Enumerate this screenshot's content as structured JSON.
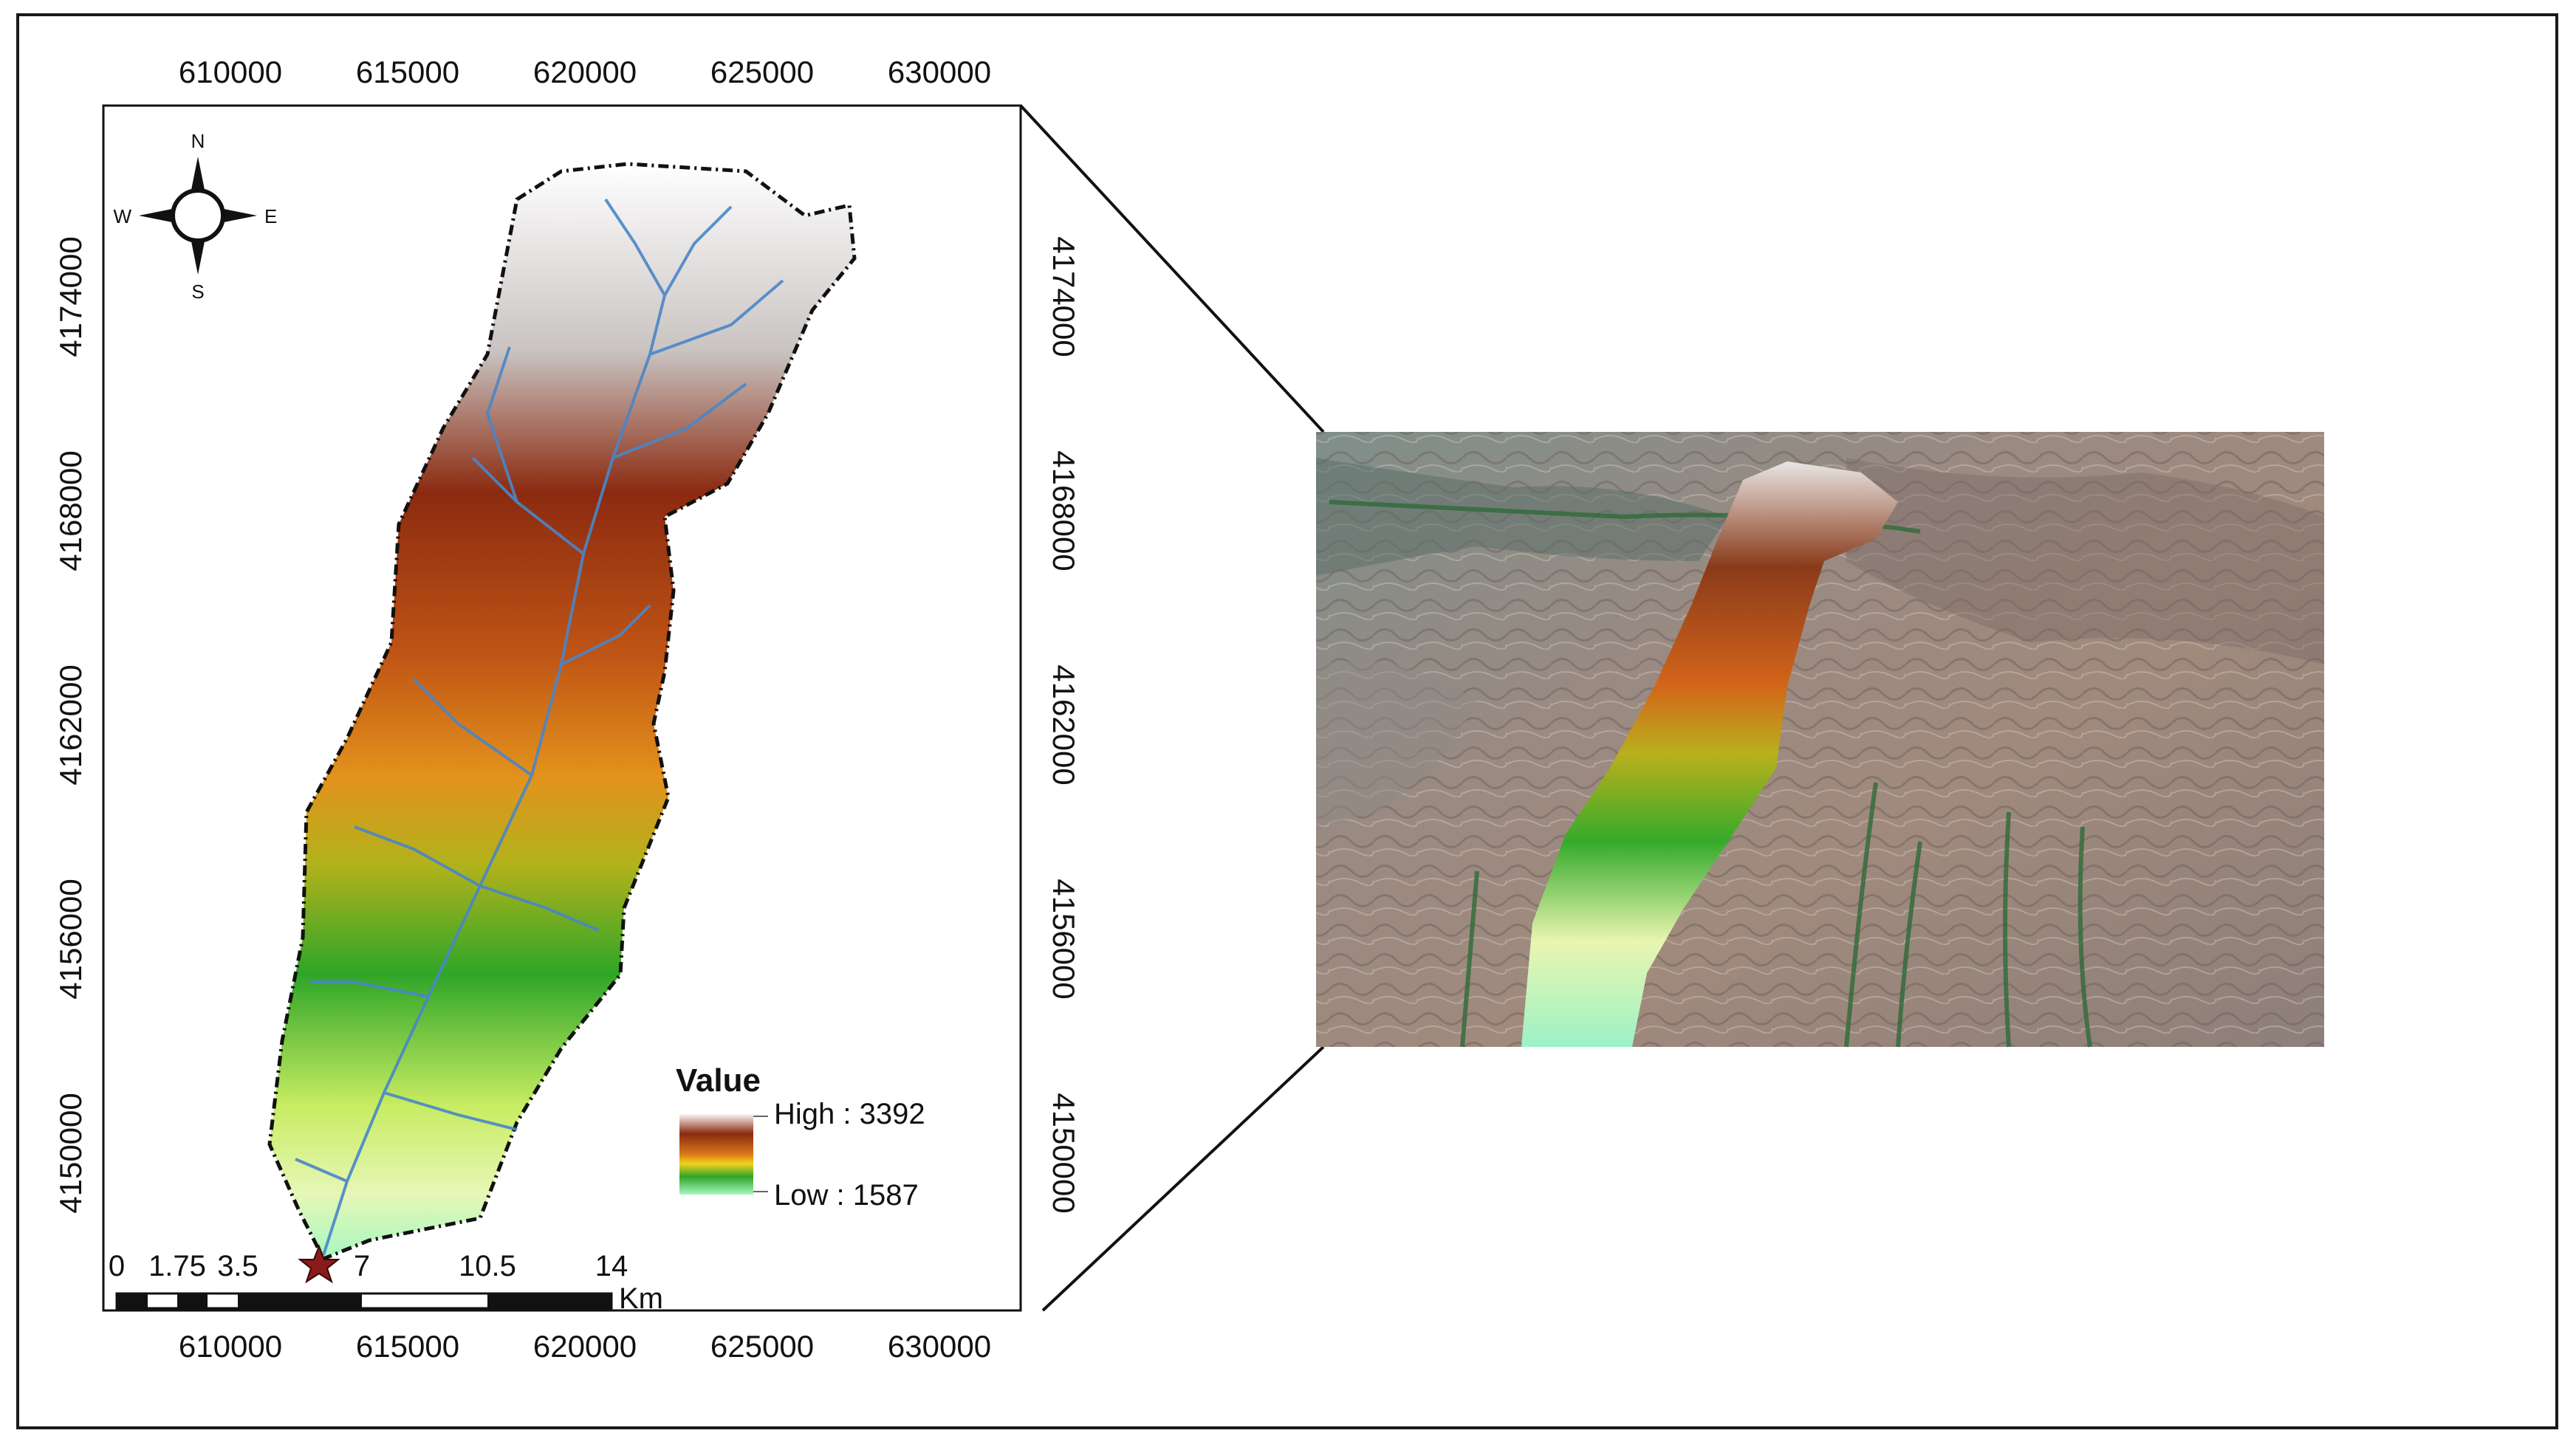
{
  "map": {
    "x_ticks_top": [
      "610000",
      "615000",
      "620000",
      "625000",
      "630000"
    ],
    "x_ticks_bottom": [
      "610000",
      "615000",
      "620000",
      "625000",
      "630000"
    ],
    "y_ticks_left": [
      "4174000",
      "4168000",
      "4162000",
      "4156000",
      "4150000"
    ],
    "y_ticks_right": [
      "4174000",
      "4168000",
      "4162000",
      "4156000",
      "4150000"
    ],
    "compass": {
      "n": "N",
      "s": "S",
      "e": "E",
      "w": "W",
      "icon": "north-arrow-icon"
    },
    "legend": {
      "title": "Value",
      "high_label": "High : 3392",
      "low_label": "Low : 1587",
      "high_value": 3392,
      "low_value": 1587,
      "ramp_colors": [
        "#ffffff",
        "#8b2a10",
        "#d8771a",
        "#f2d21c",
        "#2fa528",
        "#a8f7c2"
      ]
    },
    "scale_bar": {
      "labels": [
        "0",
        "1.75",
        "3.5",
        "7",
        "10.5",
        "14"
      ],
      "unit": "Km"
    },
    "outlet_icon": "outlet-star-icon"
  },
  "inset": {
    "description_icon": "satellite-image"
  }
}
